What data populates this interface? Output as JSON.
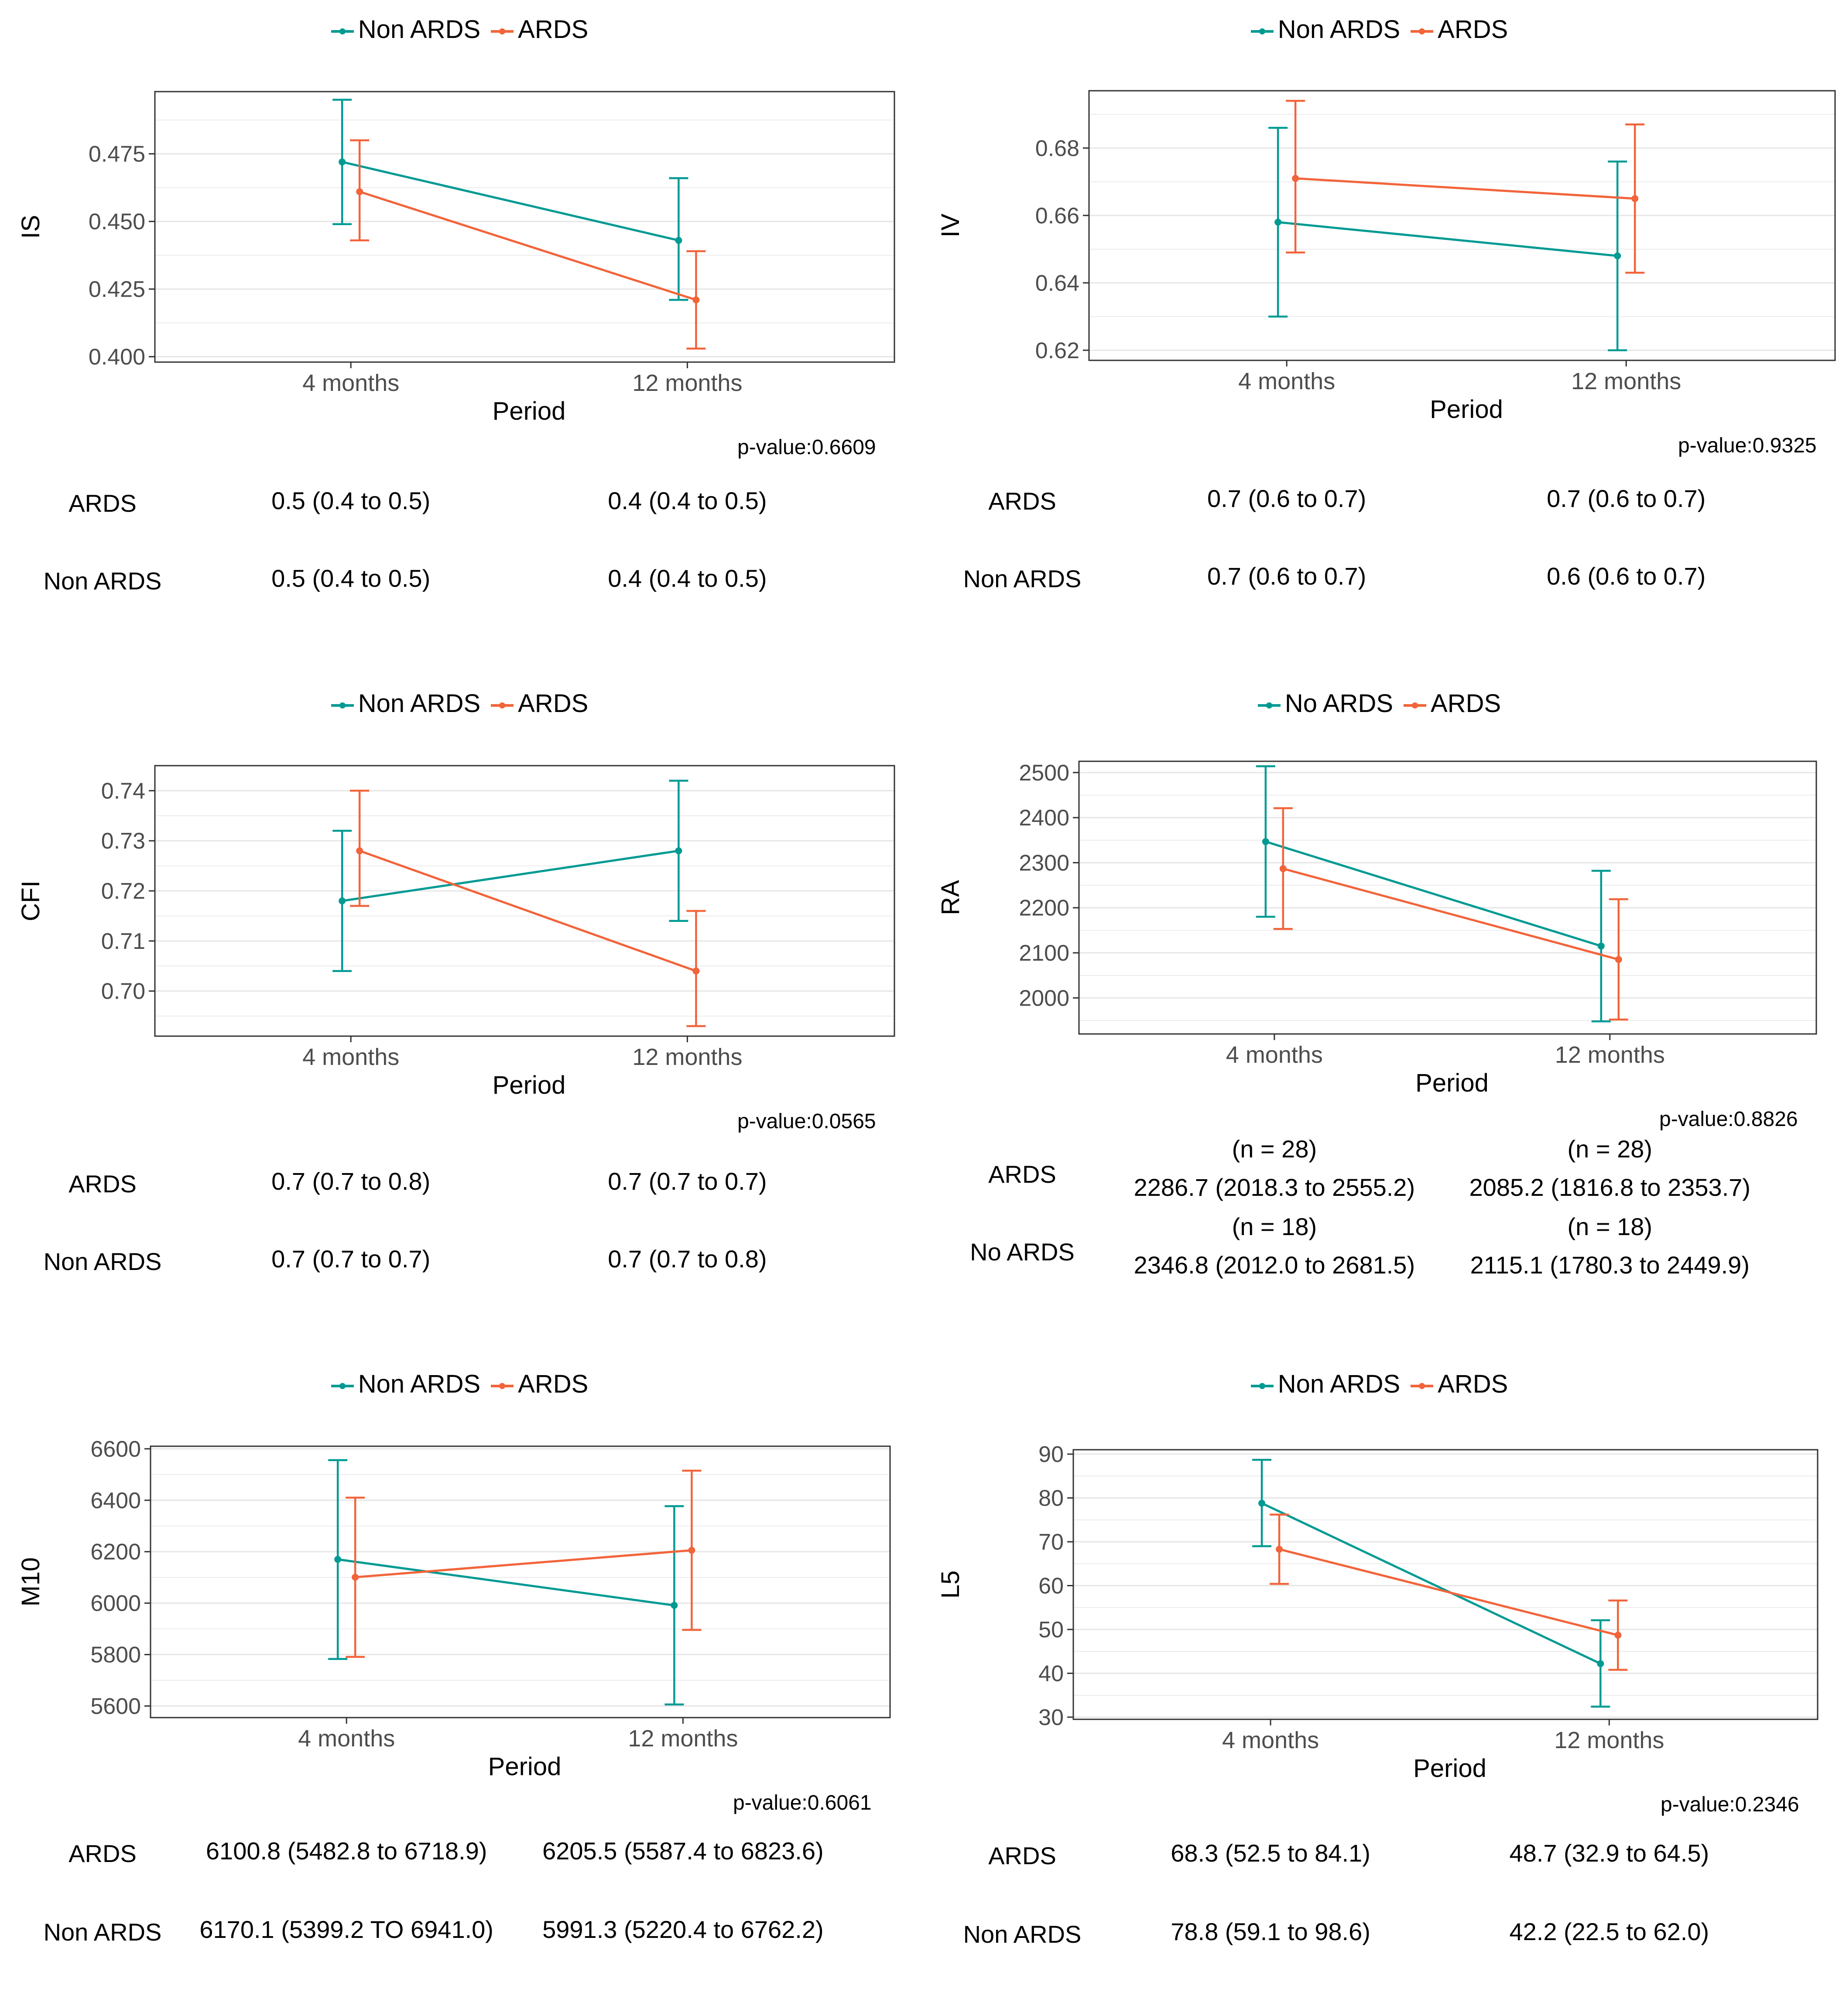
{
  "colors": {
    "non_ards": "#009a93",
    "ards": "#f2643a",
    "grid": "#e6e6e6",
    "axis": "#333333",
    "tick_text": "#4d4d4d"
  },
  "chart_data": [
    {
      "type": "line",
      "title": "",
      "xlabel": "Period",
      "ylabel": "IS",
      "categories": [
        "4 months",
        "12 months"
      ],
      "legend": [
        "Non ARDS",
        "ARDS"
      ],
      "legend_position": "top",
      "ylim": [
        0.398,
        0.498
      ],
      "yticks": [
        0.4,
        0.425,
        0.45,
        0.475
      ],
      "ytick_labels": [
        "0.400",
        "0.425",
        "0.450",
        "0.475"
      ],
      "series": [
        {
          "name": "Non ARDS",
          "values": [
            0.472,
            0.443
          ],
          "lower": [
            0.449,
            0.421
          ],
          "upper": [
            0.495,
            0.466
          ]
        },
        {
          "name": "ARDS",
          "values": [
            0.461,
            0.421
          ],
          "lower": [
            0.443,
            0.403
          ],
          "upper": [
            0.48,
            0.439
          ]
        }
      ],
      "annotation": "p-value:0.6609",
      "table": [
        {
          "group": "ARDS",
          "cells": [
            "0.5 (0.4 to 0.5)",
            "0.4 (0.4 to 0.5)"
          ]
        },
        {
          "group": "Non ARDS",
          "cells": [
            "0.5 (0.4 to 0.5)",
            "0.4 (0.4 to 0.5)"
          ]
        }
      ]
    },
    {
      "type": "line",
      "title": "",
      "xlabel": "Period",
      "ylabel": "IV",
      "categories": [
        "4 months",
        "12 months"
      ],
      "legend": [
        "Non ARDS",
        "ARDS"
      ],
      "legend_position": "top",
      "ylim": [
        0.617,
        0.697
      ],
      "yticks": [
        0.62,
        0.64,
        0.66,
        0.68
      ],
      "ytick_labels": [
        "0.62",
        "0.64",
        "0.66",
        "0.68"
      ],
      "series": [
        {
          "name": "Non ARDS",
          "values": [
            0.658,
            0.648
          ],
          "lower": [
            0.63,
            0.62
          ],
          "upper": [
            0.686,
            0.676
          ]
        },
        {
          "name": "ARDS",
          "values": [
            0.671,
            0.665
          ],
          "lower": [
            0.649,
            0.643
          ],
          "upper": [
            0.694,
            0.687
          ]
        }
      ],
      "annotation": "p-value:0.9325",
      "table": [
        {
          "group": "ARDS",
          "cells": [
            "0.7 (0.6 to 0.7)",
            "0.7 (0.6 to 0.7)"
          ]
        },
        {
          "group": "Non ARDS",
          "cells": [
            "0.7 (0.6 to 0.7)",
            "0.6 (0.6 to 0.7)"
          ]
        }
      ]
    },
    {
      "type": "line",
      "title": "",
      "xlabel": "Period",
      "ylabel": "CFI",
      "categories": [
        "4 months",
        "12 months"
      ],
      "legend": [
        "Non ARDS",
        "ARDS"
      ],
      "legend_position": "top",
      "ylim": [
        0.691,
        0.745
      ],
      "yticks": [
        0.7,
        0.71,
        0.72,
        0.73,
        0.74
      ],
      "ytick_labels": [
        "0.70",
        "0.71",
        "0.72",
        "0.73",
        "0.74"
      ],
      "series": [
        {
          "name": "Non ARDS",
          "values": [
            0.718,
            0.728
          ],
          "lower": [
            0.704,
            0.714
          ],
          "upper": [
            0.732,
            0.742
          ]
        },
        {
          "name": "ARDS",
          "values": [
            0.728,
            0.704
          ],
          "lower": [
            0.717,
            0.693
          ],
          "upper": [
            0.74,
            0.716
          ]
        }
      ],
      "annotation": "p-value:0.0565",
      "table": [
        {
          "group": "ARDS",
          "cells": [
            "0.7 (0.7 to 0.8)",
            "0.7 (0.7 to 0.7)"
          ]
        },
        {
          "group": "Non ARDS",
          "cells": [
            "0.7 (0.7 to 0.7)",
            "0.7 (0.7 to 0.8)"
          ]
        }
      ]
    },
    {
      "type": "line",
      "title": "",
      "xlabel": "Period",
      "ylabel": "RA",
      "categories": [
        "4 months",
        "12 months"
      ],
      "legend": [
        "No ARDS",
        "ARDS"
      ],
      "legend_position": "top",
      "ylim": [
        1920,
        2525
      ],
      "yticks": [
        2000,
        2100,
        2200,
        2300,
        2400,
        2500
      ],
      "ytick_labels": [
        "2000",
        "2100",
        "2200",
        "2300",
        "2400",
        "2500"
      ],
      "series": [
        {
          "name": "No ARDS",
          "values": [
            2346.8,
            2115.1
          ],
          "lower": [
            2180,
            1948
          ],
          "upper": [
            2514,
            2282
          ]
        },
        {
          "name": "ARDS",
          "values": [
            2286.7,
            2085.2
          ],
          "lower": [
            2153,
            1952
          ],
          "upper": [
            2421,
            2219
          ]
        }
      ],
      "annotation": "p-value:0.8826",
      "table": [
        {
          "group": "ARDS",
          "cells": [
            "(n = 28)\n2286.7 (2018.3 to 2555.2)",
            "(n = 28)\n2085.2 (1816.8 to 2353.7)"
          ]
        },
        {
          "group": "No ARDS",
          "cells": [
            "(n = 18)\n2346.8 (2012.0 to 2681.5)",
            "(n = 18)\n2115.1 (1780.3 to 2449.9)"
          ]
        }
      ]
    },
    {
      "type": "line",
      "title": "",
      "xlabel": "Period",
      "ylabel": "M10",
      "categories": [
        "4 months",
        "12 months"
      ],
      "legend": [
        "Non ARDS",
        "ARDS"
      ],
      "legend_position": "top",
      "ylim": [
        5555,
        6610
      ],
      "yticks": [
        5600,
        5800,
        6000,
        6200,
        6400,
        6600
      ],
      "ytick_labels": [
        "5600",
        "5800",
        "6000",
        "6200",
        "6400",
        "6600"
      ],
      "series": [
        {
          "name": "Non ARDS",
          "values": [
            6170.1,
            5991.3
          ],
          "lower": [
            5783,
            5606
          ],
          "upper": [
            6556,
            6377
          ]
        },
        {
          "name": "ARDS",
          "values": [
            6100.8,
            6205.5
          ],
          "lower": [
            5791,
            5896
          ],
          "upper": [
            6410,
            6515
          ]
        }
      ],
      "annotation": "p-value:0.6061",
      "table": [
        {
          "group": "ARDS",
          "cells": [
            "6100.8 (5482.8 to 6718.9)",
            "6205.5 (5587.4 to 6823.6)"
          ]
        },
        {
          "group": "Non ARDS",
          "cells": [
            "6170.1 (5399.2 TO 6941.0)",
            "5991.3 (5220.4 to 6762.2)"
          ]
        }
      ]
    },
    {
      "type": "line",
      "title": "",
      "xlabel": "Period",
      "ylabel": "L5",
      "categories": [
        "4 months",
        "12 months"
      ],
      "legend": [
        "Non ARDS",
        "ARDS"
      ],
      "legend_position": "top",
      "ylim": [
        29.5,
        91
      ],
      "yticks": [
        30,
        40,
        50,
        60,
        70,
        80,
        90
      ],
      "ytick_labels": [
        "30",
        "40",
        "50",
        "60",
        "70",
        "80",
        "90"
      ],
      "series": [
        {
          "name": "Non ARDS",
          "values": [
            78.8,
            42.2
          ],
          "lower": [
            69.0,
            32.4
          ],
          "upper": [
            88.7,
            52.1
          ]
        },
        {
          "name": "ARDS",
          "values": [
            68.3,
            48.7
          ],
          "lower": [
            60.4,
            40.8
          ],
          "upper": [
            76.2,
            56.6
          ]
        }
      ],
      "annotation": "p-value:0.2346",
      "table": [
        {
          "group": "ARDS",
          "cells": [
            "68.3 (52.5 to 84.1)",
            "48.7 (32.9 to 64.5)"
          ]
        },
        {
          "group": "Non ARDS",
          "cells": [
            "78.8 (59.1 to 98.6)",
            "42.2 (22.5 to 62.0)"
          ]
        }
      ]
    }
  ]
}
